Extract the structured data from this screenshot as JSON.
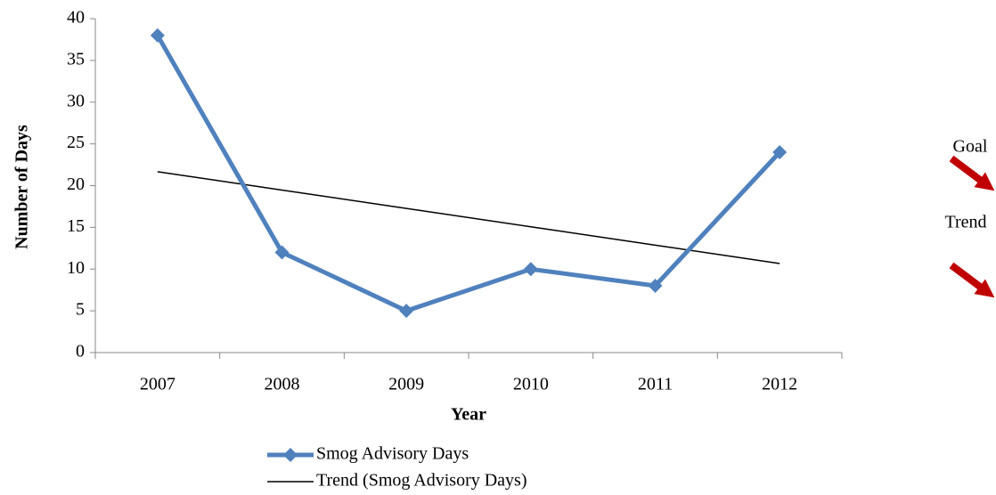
{
  "chart_data": {
    "type": "line",
    "x_label": "Year",
    "y_label": "Number of Days",
    "categories": [
      "2007",
      "2008",
      "2009",
      "2010",
      "2011",
      "2012"
    ],
    "series": [
      {
        "name": "Smog Advisory Days",
        "color": "#4f81bd",
        "values": [
          38,
          12,
          5,
          10,
          8,
          24
        ],
        "marker": "diamond"
      },
      {
        "name": "Trend (Smog Advisory Days)",
        "color": "#000000",
        "values": [
          21.67,
          19.47,
          17.27,
          15.07,
          12.87,
          10.67
        ]
      }
    ],
    "ylim": [
      0,
      40
    ],
    "yticks": [
      0,
      5,
      10,
      15,
      20,
      25,
      30,
      35,
      40
    ],
    "legend": "bottom",
    "annotations": [
      "Goal",
      "Trend"
    ]
  }
}
